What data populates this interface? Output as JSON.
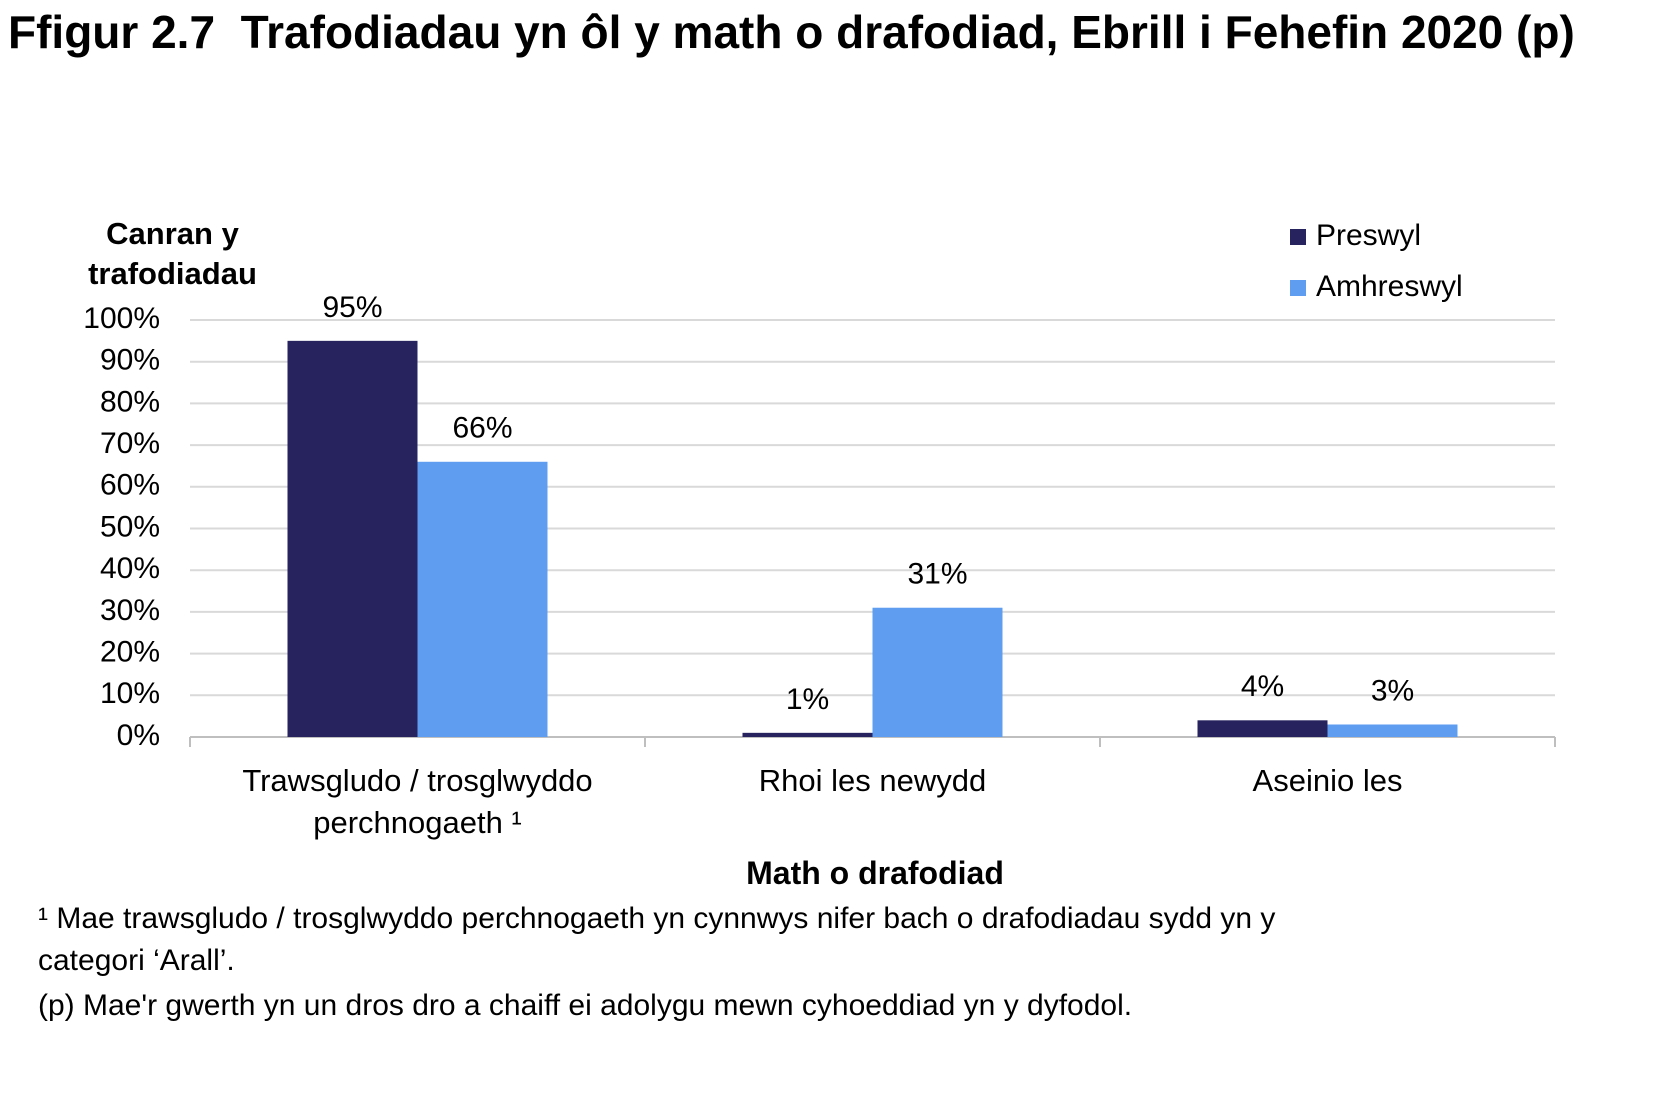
{
  "chart_data": {
    "type": "bar",
    "title": "Ffigur 2.7  Trafodiadau yn ôl y math o drafodiad, Ebrill i Fehefin 2020 (p)",
    "y_label": "Canran y trafodiadau",
    "x_label": "Math o drafodiad",
    "categories": [
      "Trawsgludo / trosglwyddo perchnogaeth ¹",
      "Rhoi les newydd",
      "Aseinio les"
    ],
    "series": [
      {
        "name": "Preswyl",
        "color": "#26235f",
        "values": [
          95,
          1,
          4
        ],
        "value_labels": [
          "95%",
          "1%",
          "4%"
        ]
      },
      {
        "name": "Amhreswyl",
        "color": "#5f9df0",
        "values": [
          66,
          31,
          3
        ],
        "value_labels": [
          "66%",
          "31%",
          "3%"
        ]
      }
    ],
    "ylim": [
      0,
      100
    ],
    "yticks": [
      {
        "value": 0,
        "label": "0%"
      },
      {
        "value": 10,
        "label": "10%"
      },
      {
        "value": 20,
        "label": "20%"
      },
      {
        "value": 30,
        "label": "30%"
      },
      {
        "value": 40,
        "label": "40%"
      },
      {
        "value": 50,
        "label": "50%"
      },
      {
        "value": 60,
        "label": "60%"
      },
      {
        "value": 70,
        "label": "70%"
      },
      {
        "value": 80,
        "label": "80%"
      },
      {
        "value": 90,
        "label": "90%"
      },
      {
        "value": 100,
        "label": "100%"
      }
    ],
    "grid": true,
    "legend": "top-right",
    "notes": [
      "¹ Mae trawsgludo / trosglwyddo perchnogaeth yn cynnwys nifer bach o drafodiadau sydd yn y categori ‘Arall’.",
      "(p) Mae'r gwerth yn un dros dro a chaiff ei adolygu mewn cyhoeddiad yn y dyfodol."
    ]
  }
}
